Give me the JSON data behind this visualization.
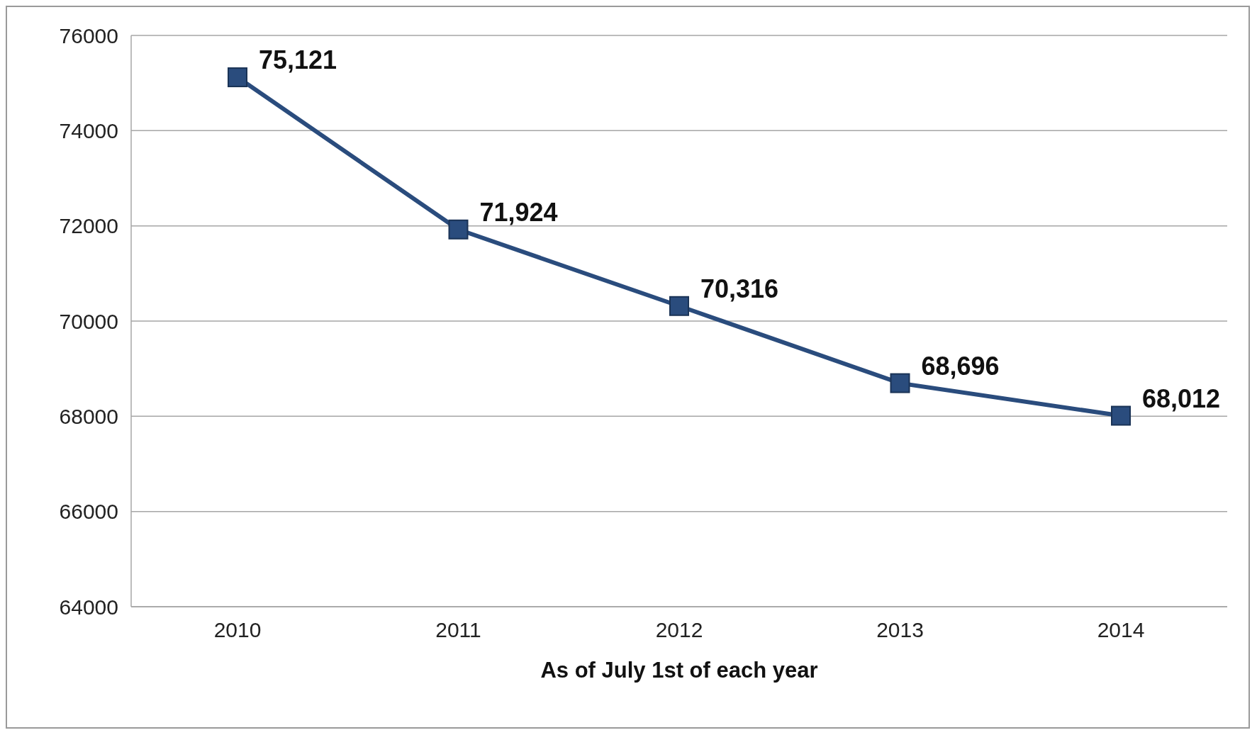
{
  "chart_data": {
    "type": "line",
    "xlabel": "As of July 1st of each year",
    "categories": [
      "2010",
      "2011",
      "2012",
      "2013",
      "2014"
    ],
    "series": [
      {
        "color": "#2a4c7d",
        "values": [
          75121,
          71924,
          70316,
          68696,
          68012
        ],
        "value_labels": [
          "75,121",
          "71,924",
          "70,316",
          "68,696",
          "68,012"
        ]
      }
    ],
    "ylim": [
      64000,
      76000
    ],
    "yticks": [
      64000,
      66000,
      68000,
      70000,
      72000,
      74000,
      76000
    ],
    "grid": "y",
    "marker": "square",
    "line_style": "solid",
    "legend": false
  }
}
